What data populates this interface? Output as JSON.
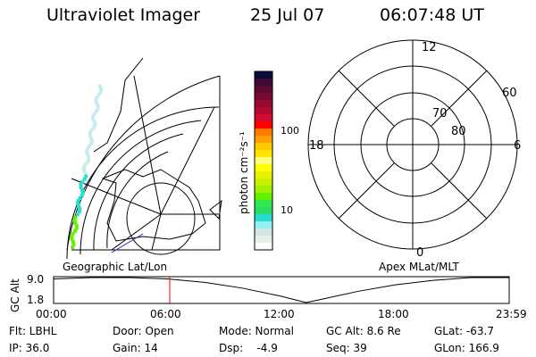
{
  "header": {
    "instrument": "Ultraviolet Imager",
    "date": "25 Jul 07",
    "time": "06:07:48 UT"
  },
  "colorbar": {
    "label": "photon cm⁻²s⁻¹",
    "ticks": [
      "100",
      "10"
    ],
    "colors": [
      "#0a0a3c",
      "#3c0a32",
      "#5a0a32",
      "#780a32",
      "#960a32",
      "#b40a32",
      "#d20a32",
      "#ff0000",
      "#ff7800",
      "#ffa000",
      "#ffc800",
      "#ffe600",
      "#ffff80",
      "#ffff00",
      "#e6f000",
      "#c8f000",
      "#a0f000",
      "#64f000",
      "#32e650",
      "#28dc64",
      "#28dcd2",
      "#96f0f0",
      "#d2e6e6",
      "#e6f0ea",
      "#ffffff"
    ]
  },
  "polar": {
    "mlt_labels": {
      "top": "12",
      "left": "18",
      "right": "6",
      "bottom": "0"
    },
    "lat_labels": [
      "60",
      "70",
      "80"
    ]
  },
  "projection_labels": {
    "left": "Geographic Lat/Lon",
    "right": "Apex MLat/MLT"
  },
  "chart_data": {
    "type": "line",
    "ylabel": "GC Alt",
    "yticks": [
      "9.0",
      "1.8"
    ],
    "ylim": [
      1.8,
      9.0
    ],
    "xticks": [
      "00:00",
      "06:00",
      "12:00",
      "18:00",
      "23:59"
    ],
    "x": [
      0,
      2,
      4,
      6,
      8,
      10,
      12,
      13.3,
      14,
      16,
      18,
      20,
      22,
      24
    ],
    "y": [
      8.6,
      9.0,
      9.0,
      8.6,
      7.6,
      5.9,
      3.6,
      1.8,
      2.6,
      5.0,
      6.9,
      8.2,
      9.0,
      9.0
    ],
    "current_time": "06:07",
    "current_marker_color": "#ff0000"
  },
  "status": {
    "flt": "Flt: LBHL",
    "ip": "IP: 36.0",
    "door": "Door: Open",
    "gain": "Gain: 14",
    "mode": "Mode: Normal",
    "dsp": "Dsp:    -4.9",
    "gcalt": "GC Alt: 8.6 Re",
    "seq": "Seq: 39",
    "glat": "GLat: -63.7",
    "glon": "GLon: 166.9"
  }
}
